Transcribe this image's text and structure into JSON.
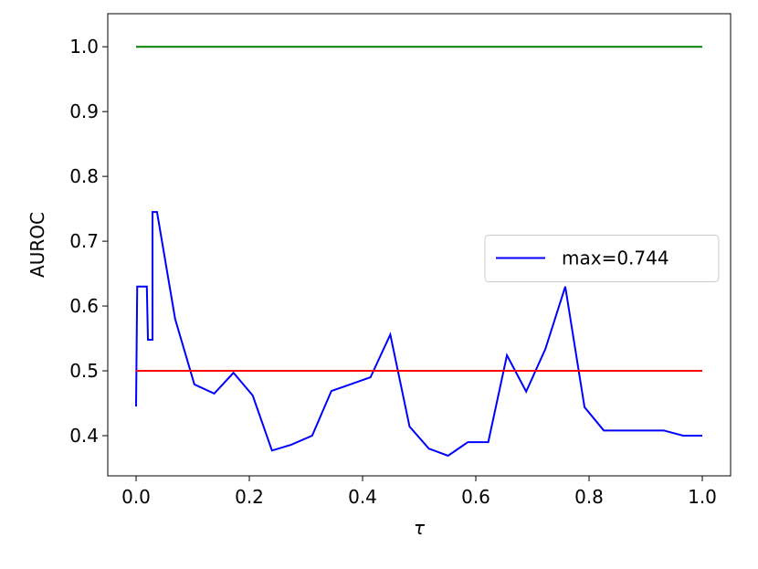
{
  "chart_data": {
    "type": "line",
    "xlabel": "τ",
    "ylabel": "AUROC",
    "xlim": [
      -0.05,
      1.05
    ],
    "ylim": [
      0.338,
      1.051
    ],
    "xticks": [
      {
        "value": 0,
        "label": "0.0"
      },
      0.2,
      0.4,
      0.6,
      0.8,
      {
        "value": 1,
        "label": "1.0"
      }
    ],
    "yticks": [
      0.4,
      0.5,
      0.6,
      0.7,
      0.8,
      0.9,
      {
        "value": 1,
        "label": "1.0"
      }
    ],
    "legend": "center right",
    "series": [
      {
        "name": "max=0.744",
        "color": "#0000ff",
        "x": [
          0,
          0.002,
          0.019,
          0.021,
          0.029,
          0.029,
          0.037,
          0.069,
          0.103,
          0.138,
          0.172,
          0.206,
          0.24,
          0.274,
          0.311,
          0.345,
          0.378,
          0.414,
          0.449,
          0.483,
          0.517,
          0.551,
          0.586,
          0.622,
          0.655,
          0.689,
          0.723,
          0.758,
          0.792,
          0.826,
          0.932,
          0.966,
          1.0
        ],
        "values": [
          0.445,
          0.63,
          0.63,
          0.548,
          0.548,
          0.745,
          0.745,
          0.58,
          0.479,
          0.465,
          0.497,
          0.462,
          0.377,
          0.386,
          0.4,
          0.469,
          0.479,
          0.49,
          0.556,
          0.414,
          0.38,
          0.369,
          0.39,
          0.39,
          0.524,
          0.468,
          0.534,
          0.63,
          0.444,
          0.408,
          0.408,
          0.4,
          0.4
        ]
      },
      {
        "color": "#008000",
        "x": [
          0,
          1
        ],
        "values": [
          1,
          1
        ]
      },
      {
        "color": "#ff0000",
        "x": [
          0,
          1
        ],
        "values": [
          0.5,
          0.5
        ]
      }
    ]
  }
}
